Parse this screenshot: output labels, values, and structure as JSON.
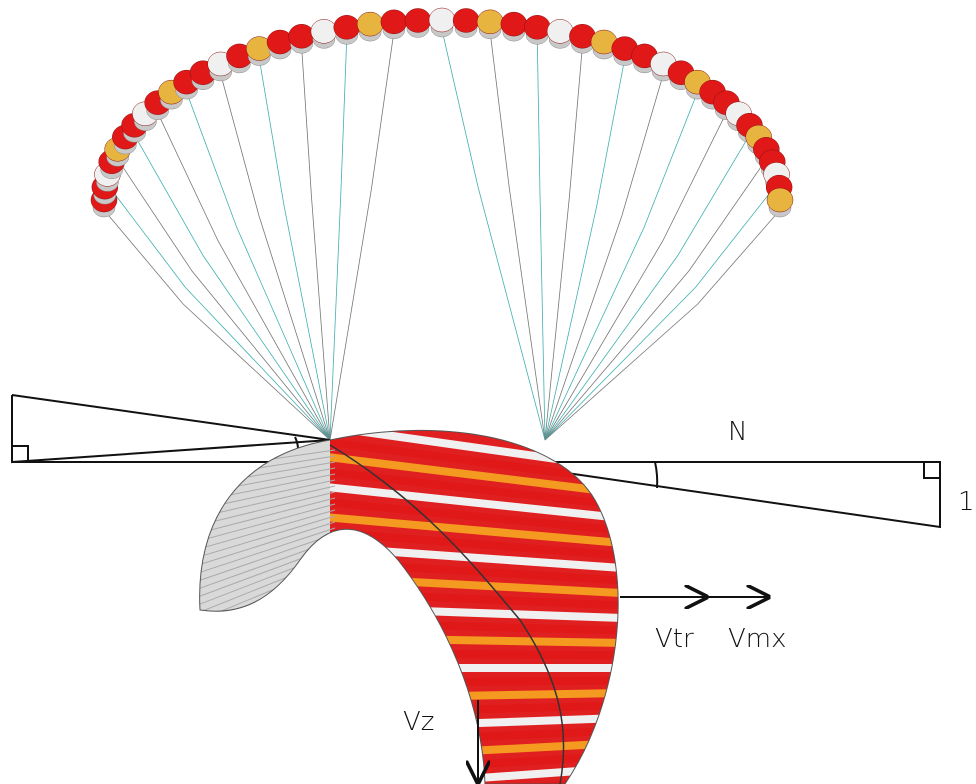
{
  "labels": {
    "n": "N",
    "one": "1",
    "vtr": "Vtr",
    "vmx": "Vmx",
    "vz": "Vz"
  }
}
